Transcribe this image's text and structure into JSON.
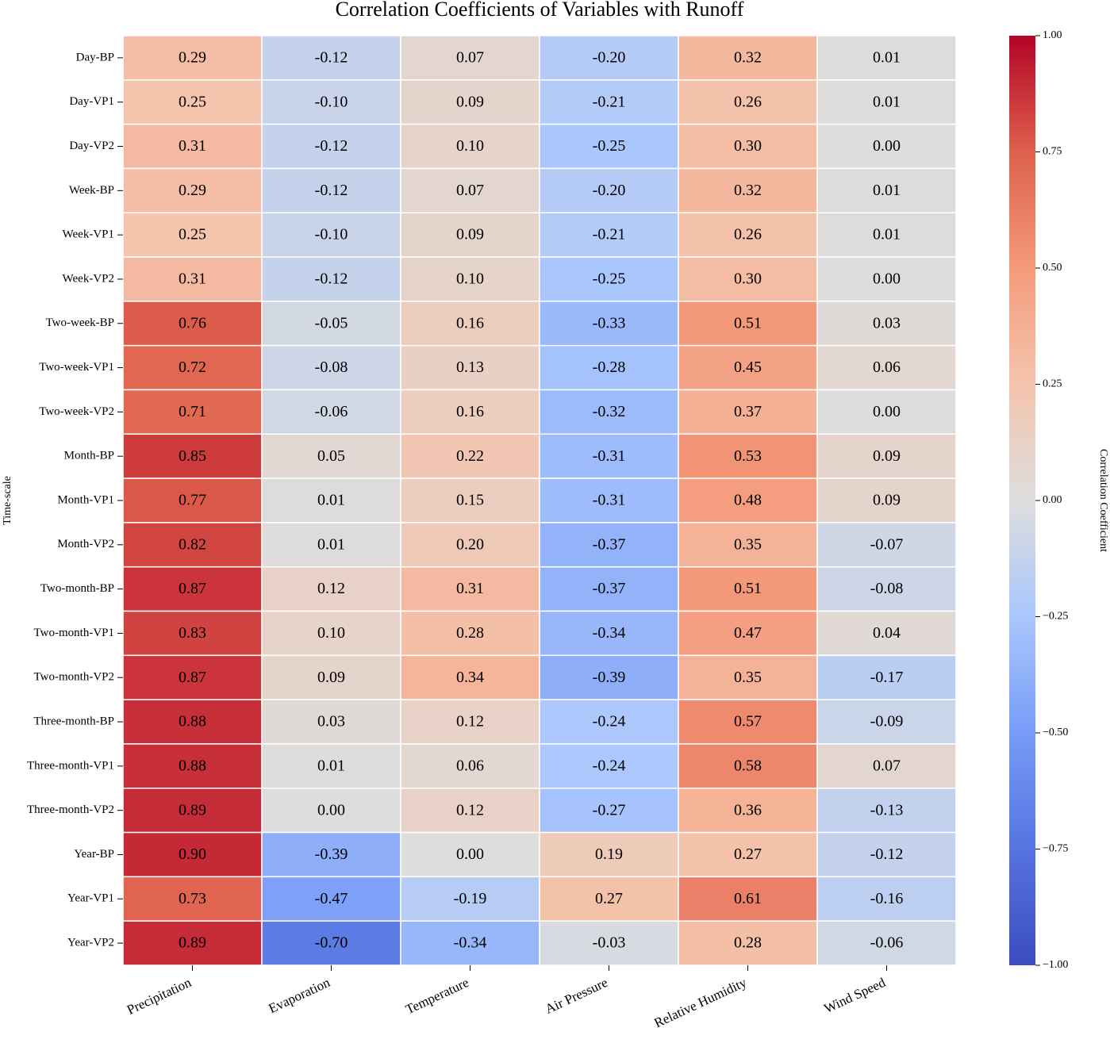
{
  "chart_data": {
    "type": "heatmap",
    "title": "Correlation Coefficients of Variables with Runoff",
    "ylabel": "Time-scale",
    "colorbar_label": "Correlation Coefficient",
    "colormap": "coolwarm",
    "x_categories": [
      "Precipitation",
      "Evaporation",
      "Temperature",
      "Air Pressure",
      "Relative Humidity",
      "Wind Speed"
    ],
    "y_categories": [
      "Day-BP",
      "Day-VP1",
      "Day-VP2",
      "Week-BP",
      "Week-VP1",
      "Week-VP2",
      "Two-week-BP",
      "Two-week-VP1",
      "Two-week-VP2",
      "Month-BP",
      "Month-VP1",
      "Month-VP2",
      "Two-month-BP",
      "Two-month-VP1",
      "Two-month-VP2",
      "Three-month-BP",
      "Three-month-VP1",
      "Three-month-VP2",
      "Year-BP",
      "Year-VP1",
      "Year-VP2"
    ],
    "values": [
      [
        0.29,
        -0.12,
        0.07,
        -0.2,
        0.32,
        0.01
      ],
      [
        0.25,
        -0.1,
        0.09,
        -0.21,
        0.26,
        0.01
      ],
      [
        0.31,
        -0.12,
        0.1,
        -0.25,
        0.3,
        0
      ],
      [
        0.29,
        -0.12,
        0.07,
        -0.2,
        0.32,
        0.01
      ],
      [
        0.25,
        -0.1,
        0.09,
        -0.21,
        0.26,
        0.01
      ],
      [
        0.31,
        -0.12,
        0.1,
        -0.25,
        0.3,
        0
      ],
      [
        0.76,
        -0.05,
        0.16,
        -0.33,
        0.51,
        0.03
      ],
      [
        0.72,
        -0.08,
        0.13,
        -0.28,
        0.45,
        0.06
      ],
      [
        0.71,
        -0.06,
        0.16,
        -0.32,
        0.37,
        0
      ],
      [
        0.85,
        0.05,
        0.22,
        -0.31,
        0.53,
        0.09
      ],
      [
        0.77,
        0.01,
        0.15,
        -0.31,
        0.48,
        0.09
      ],
      [
        0.82,
        0.01,
        0.2,
        -0.37,
        0.35,
        -0.07
      ],
      [
        0.87,
        0.12,
        0.31,
        -0.37,
        0.51,
        -0.08
      ],
      [
        0.83,
        0.1,
        0.28,
        -0.34,
        0.47,
        0.04
      ],
      [
        0.87,
        0.09,
        0.34,
        -0.39,
        0.35,
        -0.17
      ],
      [
        0.88,
        0.03,
        0.12,
        -0.24,
        0.57,
        -0.09
      ],
      [
        0.88,
        0.01,
        0.06,
        -0.24,
        0.58,
        0.07
      ],
      [
        0.89,
        0,
        0.12,
        -0.27,
        0.36,
        -0.13
      ],
      [
        0.9,
        -0.39,
        0,
        0.19,
        0.27,
        -0.12
      ],
      [
        0.73,
        -0.47,
        -0.19,
        0.27,
        0.61,
        -0.16
      ],
      [
        0.89,
        -0.7,
        -0.34,
        -0.03,
        0.28,
        -0.06
      ]
    ],
    "value_labels": [
      [
        "0.29",
        "-0.12",
        "0.07",
        "-0.20",
        "0.32",
        "0.01"
      ],
      [
        "0.25",
        "-0.10",
        "0.09",
        "-0.21",
        "0.26",
        "0.01"
      ],
      [
        "0.31",
        "-0.12",
        "0.10",
        "-0.25",
        "0.30",
        "0.00"
      ],
      [
        "0.29",
        "-0.12",
        "0.07",
        "-0.20",
        "0.32",
        "0.01"
      ],
      [
        "0.25",
        "-0.10",
        "0.09",
        "-0.21",
        "0.26",
        "0.01"
      ],
      [
        "0.31",
        "-0.12",
        "0.10",
        "-0.25",
        "0.30",
        "0.00"
      ],
      [
        "0.76",
        "-0.05",
        "0.16",
        "-0.33",
        "0.51",
        "0.03"
      ],
      [
        "0.72",
        "-0.08",
        "0.13",
        "-0.28",
        "0.45",
        "0.06"
      ],
      [
        "0.71",
        "-0.06",
        "0.16",
        "-0.32",
        "0.37",
        "0.00"
      ],
      [
        "0.85",
        "0.05",
        "0.22",
        "-0.31",
        "0.53",
        "0.09"
      ],
      [
        "0.77",
        "0.01",
        "0.15",
        "-0.31",
        "0.48",
        "0.09"
      ],
      [
        "0.82",
        "0.01",
        "0.20",
        "-0.37",
        "0.35",
        "-0.07"
      ],
      [
        "0.87",
        "0.12",
        "0.31",
        "-0.37",
        "0.51",
        "-0.08"
      ],
      [
        "0.83",
        "0.10",
        "0.28",
        "-0.34",
        "0.47",
        "0.04"
      ],
      [
        "0.87",
        "0.09",
        "0.34",
        "-0.39",
        "0.35",
        "-0.17"
      ],
      [
        "0.88",
        "0.03",
        "0.12",
        "-0.24",
        "0.57",
        "-0.09"
      ],
      [
        "0.88",
        "0.01",
        "0.06",
        "-0.24",
        "0.58",
        "0.07"
      ],
      [
        "0.89",
        "0.00",
        "0.12",
        "-0.27",
        "0.36",
        "-0.13"
      ],
      [
        "0.90",
        "-0.39",
        "0.00",
        "0.19",
        "0.27",
        "-0.12"
      ],
      [
        "0.73",
        "-0.47",
        "-0.19",
        "0.27",
        "0.61",
        "-0.16"
      ],
      [
        "0.89",
        "-0.70",
        "-0.34",
        "-0.03",
        "0.28",
        "-0.06"
      ]
    ],
    "zlim": [
      -1,
      1
    ],
    "zticks": [
      {
        "value": -1,
        "label": "−1.00"
      },
      {
        "value": -0.75,
        "label": "−0.75"
      },
      {
        "value": -0.5,
        "label": "−0.50"
      },
      {
        "value": -0.25,
        "label": "−0.25"
      },
      {
        "value": 0,
        "label": "0.00"
      },
      {
        "value": 0.25,
        "label": "0.25"
      },
      {
        "value": 0.5,
        "label": "0.50"
      },
      {
        "value": 0.75,
        "label": "0.75"
      },
      {
        "value": 1,
        "label": "1.00"
      }
    ]
  }
}
